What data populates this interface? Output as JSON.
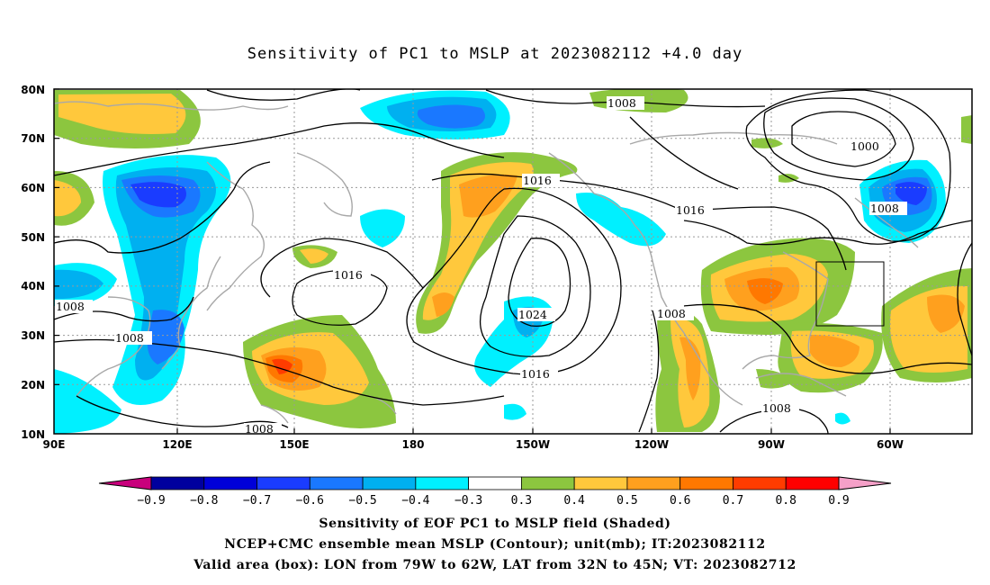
{
  "title": "Sensitivity of PC1 to MSLP at 2023082112 +4.0 day",
  "lat_labels": [
    "80N",
    "70N",
    "60N",
    "50N",
    "40N",
    "30N",
    "20N",
    "10N"
  ],
  "lon_labels": [
    "90E",
    "120E",
    "150E",
    "180",
    "150W",
    "120W",
    "90W",
    "60W"
  ],
  "contour_labels": [
    "1008",
    "1000",
    "1016",
    "1016",
    "1008",
    "1016",
    "1024",
    "1016",
    "1008",
    "1008",
    "1008",
    "1008",
    "1008"
  ],
  "colorbar": {
    "ticks": [
      "-0.9",
      "-0.8",
      "-0.7",
      "-0.6",
      "-0.5",
      "-0.4",
      "-0.3",
      "0.3",
      "0.4",
      "0.5",
      "0.6",
      "0.7",
      "0.8",
      "0.9"
    ],
    "colors": [
      "#c8007c",
      "#00009e",
      "#0000d8",
      "#1a3cff",
      "#1a78ff",
      "#00b0f0",
      "#00f0ff",
      "#ffffff",
      "#8cc63f",
      "#ffc83c",
      "#ffa01e",
      "#ff7800",
      "#ff3c00",
      "#ff0000",
      "#f5a0c8"
    ]
  },
  "footer": {
    "line1": "Sensitivity of EOF PC1 to MSLP field (Shaded)",
    "line2": "NCEP+CMC ensemble mean MSLP (Contour); unit(mb); IT:2023082112",
    "line3": "Valid area (box): LON from 79W to 62W, LAT from 32N to 45N; VT: 2023082712"
  }
}
